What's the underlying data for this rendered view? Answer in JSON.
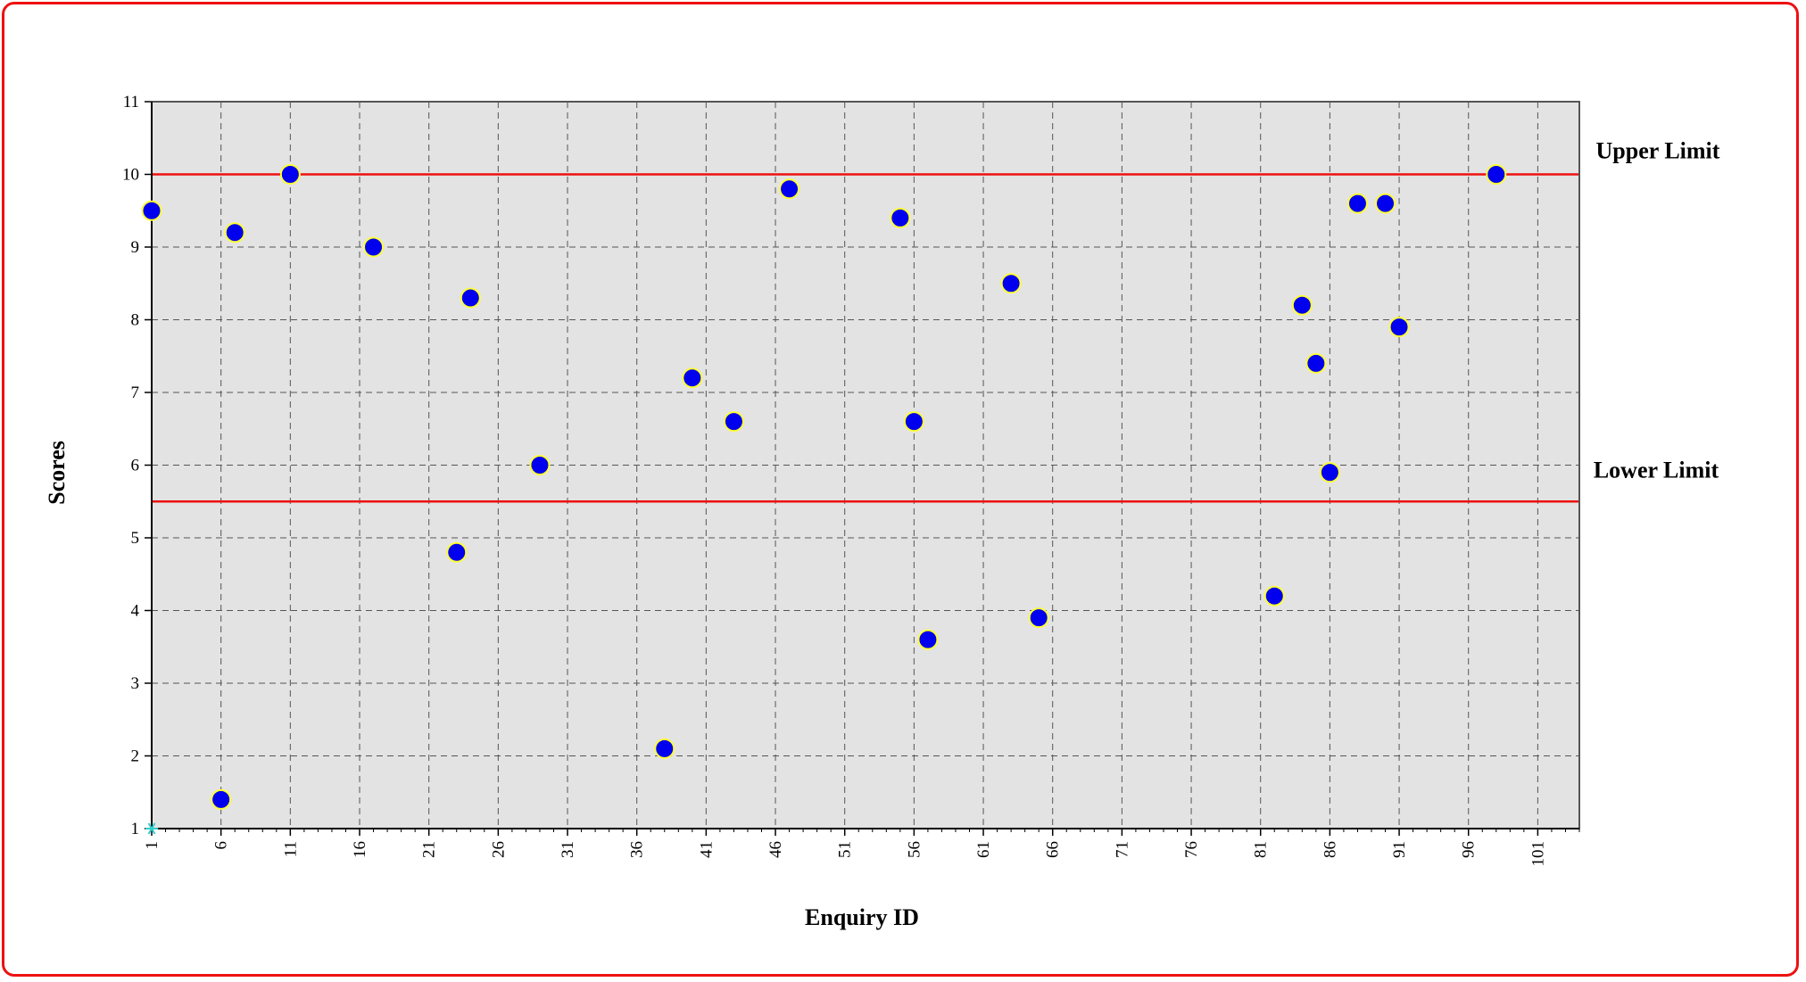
{
  "chart_data": {
    "type": "scatter",
    "title": "",
    "xlabel": "Enquiry ID",
    "ylabel": "Scores",
    "xlim": [
      1,
      104
    ],
    "ylim": [
      1,
      11
    ],
    "x_ticks": [
      1,
      6,
      11,
      16,
      21,
      26,
      31,
      36,
      41,
      46,
      51,
      56,
      61,
      66,
      71,
      76,
      81,
      86,
      91,
      96,
      101
    ],
    "y_ticks": [
      1,
      2,
      3,
      4,
      5,
      6,
      7,
      8,
      9,
      10,
      11
    ],
    "grid": true,
    "background_color": "#e3e3e3",
    "marker_color": "#0000ee",
    "marker_edge_color": "#ffff33",
    "limit_color": "#ee1111",
    "origin_marker_color": "#33cccc",
    "limits": [
      {
        "name": "Upper Limit",
        "value": 10
      },
      {
        "name": "Lower Limit",
        "value": 5.5
      }
    ],
    "series": [
      {
        "points": [
          {
            "x": 1,
            "y": 9.5
          },
          {
            "x": 6,
            "y": 1.4
          },
          {
            "x": 7,
            "y": 9.2
          },
          {
            "x": 11,
            "y": 10
          },
          {
            "x": 17,
            "y": 9
          },
          {
            "x": 23,
            "y": 4.8
          },
          {
            "x": 24,
            "y": 8.3
          },
          {
            "x": 29,
            "y": 6
          },
          {
            "x": 38,
            "y": 2.1
          },
          {
            "x": 40,
            "y": 7.2
          },
          {
            "x": 43,
            "y": 6.6
          },
          {
            "x": 47,
            "y": 9.8
          },
          {
            "x": 55,
            "y": 9.4
          },
          {
            "x": 56,
            "y": 6.6
          },
          {
            "x": 57,
            "y": 3.6
          },
          {
            "x": 63,
            "y": 8.5
          },
          {
            "x": 65,
            "y": 3.9
          },
          {
            "x": 82,
            "y": 4.2
          },
          {
            "x": 84,
            "y": 8.2
          },
          {
            "x": 85,
            "y": 7.4
          },
          {
            "x": 86,
            "y": 5.9
          },
          {
            "x": 88,
            "y": 9.6
          },
          {
            "x": 90,
            "y": 9.6
          },
          {
            "x": 91,
            "y": 7.9
          },
          {
            "x": 98,
            "y": 10
          }
        ]
      }
    ]
  }
}
